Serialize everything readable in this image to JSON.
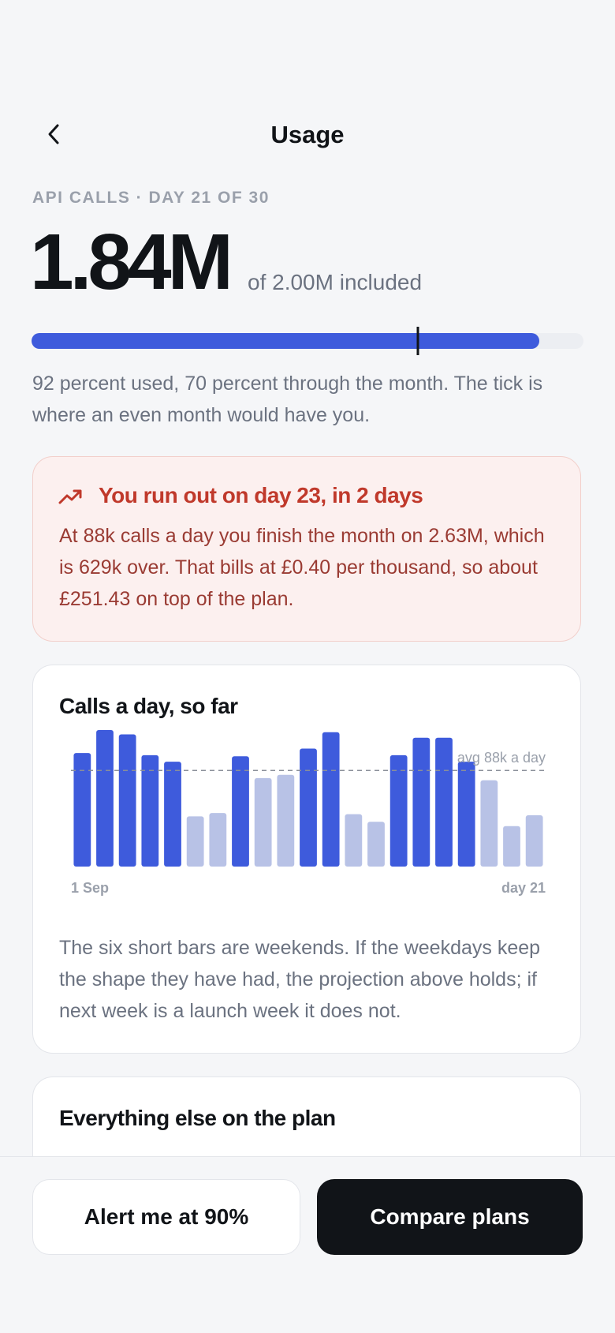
{
  "header": {
    "title": "Usage"
  },
  "eyebrow": "API CALLS · DAY 21 OF 30",
  "usage": {
    "value": "1.84M",
    "caption": "of 2.00M included"
  },
  "progress": {
    "used": 92,
    "elapsed": 70,
    "color": "#3e5bdc"
  },
  "progress_note": "92 percent used, 70 percent through the month. The tick is where an even month would have you.",
  "alert": {
    "title": "You run out on day 23, in 2 days",
    "body": "At 88k calls a day you finish the month on 2.63M, which is 629k over. That bills at £0.40 per thousand, so about £251.43 on top of the plan."
  },
  "chart_data": {
    "type": "bar",
    "title": "Calls a day, so far",
    "categories": [
      "1 Sep",
      null,
      null,
      null,
      null,
      null,
      null,
      null,
      null,
      null,
      null,
      null,
      null,
      null,
      null,
      null,
      null,
      null,
      null,
      null,
      "day 21"
    ],
    "values": [
      104,
      125,
      121,
      102,
      96,
      46,
      49,
      101,
      81,
      84,
      108,
      123,
      48,
      41,
      102,
      118,
      118,
      96,
      79,
      37,
      47
    ],
    "colors": [
      "#3e5bdc",
      "#3e5bdc",
      "#3e5bdc",
      "#3e5bdc",
      "#3e5bdc",
      "#b8c2e6",
      "#b8c2e6",
      "#3e5bdc",
      "#b8c2e6",
      "#b8c2e6",
      "#3e5bdc",
      "#3e5bdc",
      "#b8c2e6",
      "#b8c2e6",
      "#3e5bdc",
      "#3e5bdc",
      "#3e5bdc",
      "#3e5bdc",
      "#b8c2e6",
      "#b8c2e6",
      "#b8c2e6"
    ],
    "reference_line": {
      "value": 88,
      "label": "avg 88k a day"
    }
  },
  "chart_note": "The six short bars are weekends. If the weekdays keep the shape they have had, the projection above holds; if next week is a launch week it does not.",
  "plan_card": {
    "title": "Everything else on the plan"
  },
  "actions": {
    "secondary": "Alert me at 90%",
    "primary": "Compare plans"
  }
}
